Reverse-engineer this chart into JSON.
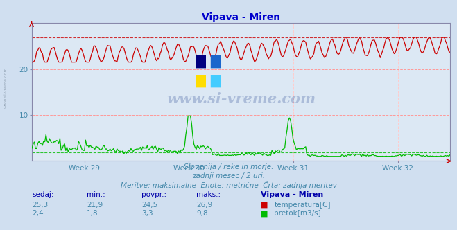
{
  "title": "Vipava - Miren",
  "title_color": "#0000cc",
  "bg_color": "#d0dff0",
  "plot_bg_color": "#dce8f4",
  "grid_color_h": "#ff9999",
  "grid_color_v": "#ffcccc",
  "axis_color": "#8888aa",
  "xlabel_weeks": [
    "Week 29",
    "Week 30",
    "Week 31",
    "Week 32"
  ],
  "xlabel_week_positions": [
    0.125,
    0.375,
    0.625,
    0.875
  ],
  "ylim": [
    0,
    30
  ],
  "yticks": [
    10,
    20
  ],
  "temp_color": "#cc0000",
  "flow_color": "#00bb00",
  "temp_min": 21.9,
  "temp_max": 26.9,
  "temp_mean": 24.5,
  "temp_current": 25.3,
  "flow_min": 1.8,
  "flow_max": 9.8,
  "flow_mean": 3.3,
  "flow_current": 2.4,
  "subtitle1": "Slovenija / reke in morje.",
  "subtitle2": "zadnji mesec / 2 uri.",
  "subtitle3": "Meritve: maksimalne  Enote: metrične  Črta: zadnja meritev",
  "subtitle_color": "#4488aa",
  "table_header_color": "#0000aa",
  "table_value_color": "#4488aa",
  "watermark": "www.si-vreme.com",
  "watermark_color": "#1a3a8a",
  "left_label": "www.si-vreme.com",
  "n_points": 360
}
